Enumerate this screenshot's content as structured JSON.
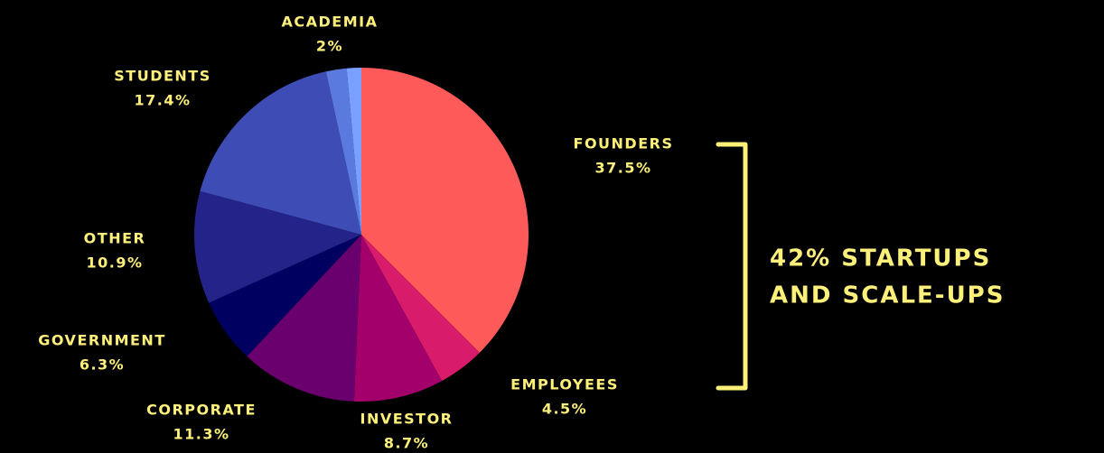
{
  "chart_data": {
    "type": "pie",
    "categories": [
      "FOUNDERS",
      "EMPLOYEES",
      "INVESTOR",
      "CORPORATE",
      "GOVERNMENT",
      "OTHER",
      "STUDENTS",
      "ACADEMIA",
      null
    ],
    "values": [
      37.5,
      4.5,
      8.7,
      11.3,
      6.3,
      10.9,
      17.4,
      2,
      1.4
    ],
    "value_labels": [
      "37.5%",
      "4.5%",
      "8.7%",
      "11.3%",
      "6.3%",
      "10.9%",
      "17.4%",
      "2%",
      null
    ],
    "colors": [
      "#ff5a5a",
      "#d81b6a",
      "#a3006b",
      "#6a006e",
      "#000060",
      "#23238a",
      "#3d4db5",
      "#5a7ae0",
      "#7aa0ff"
    ],
    "annotation": [
      "42% STARTUPS",
      "AND SCALE-UPS"
    ]
  }
}
